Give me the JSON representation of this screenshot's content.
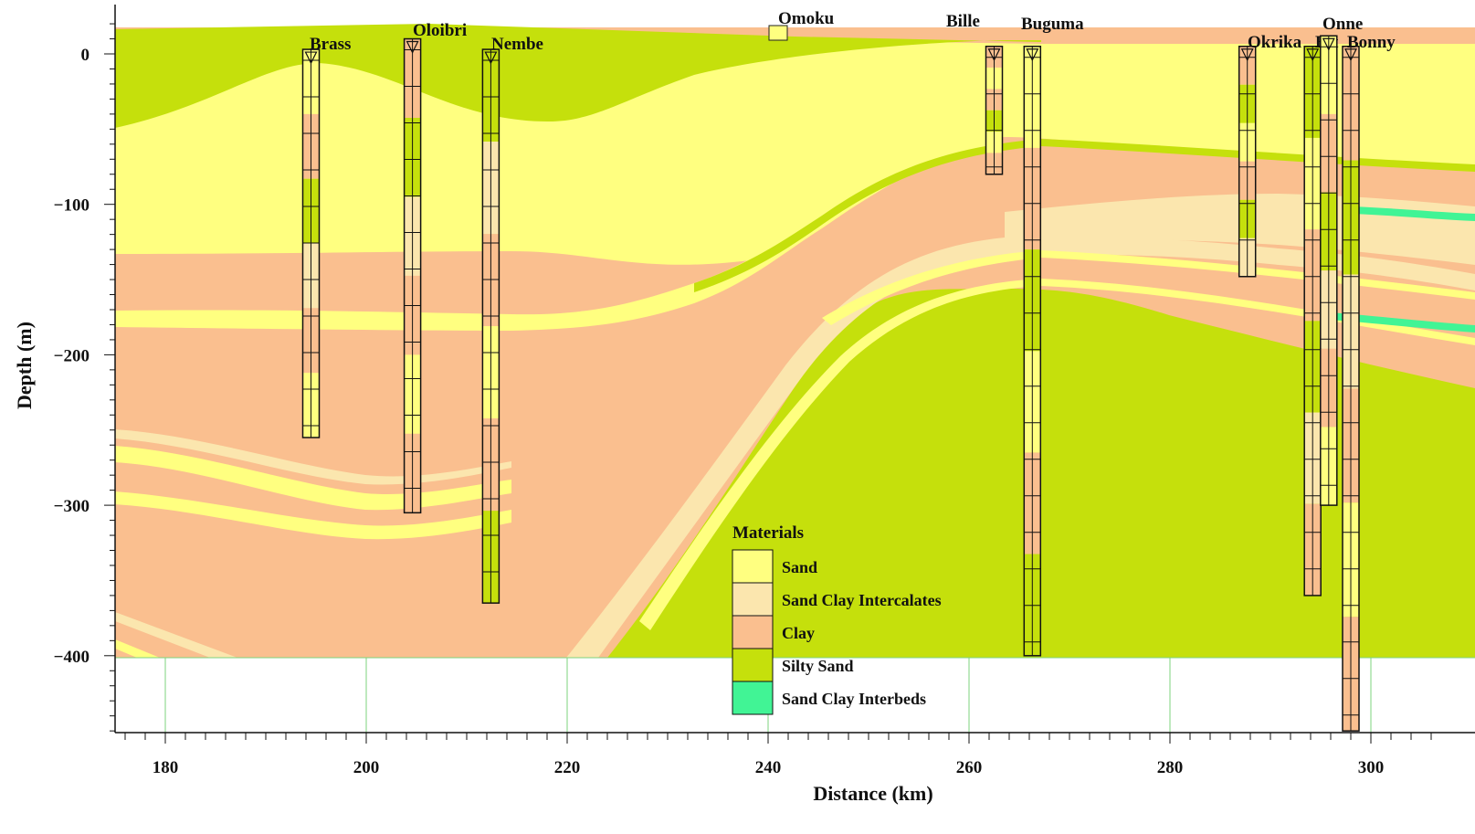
{
  "axes": {
    "x_title": "Distance (km)",
    "y_title": "Depth (m)",
    "x_ticks": [
      "180",
      "200",
      "220",
      "240",
      "260",
      "280",
      "300"
    ],
    "y_ticks": [
      "0",
      "−100",
      "−200",
      "−300",
      "−400"
    ]
  },
  "wells": [
    {
      "name": "Brass",
      "km": 194.5,
      "top": 3,
      "bottom": -255
    },
    {
      "name": "Oloibri",
      "km": 204.6,
      "top": 10,
      "bottom": -305
    },
    {
      "name": "Nembe",
      "km": 212.4,
      "top": 3,
      "bottom": -365
    },
    {
      "name": "Omoku",
      "km": 241.1,
      "top": 20,
      "bottom": 12
    },
    {
      "name": "Bille",
      "km": 262.5,
      "top": 5,
      "bottom": -80
    },
    {
      "name": "Buguma",
      "km": 266.3,
      "top": 5,
      "bottom": -400
    },
    {
      "name": "Okrika",
      "km": 287.7,
      "top": 5,
      "bottom": -148
    },
    {
      "name": "Bft",
      "km": 294.2,
      "top": 5,
      "bottom": -360
    },
    {
      "name": "Onne",
      "km": 295.8,
      "top": 12,
      "bottom": -300
    },
    {
      "name": "Bonny",
      "km": 298.0,
      "top": 5,
      "bottom": -450
    }
  ],
  "legend": {
    "title": "Materials",
    "items": [
      {
        "label": "Sand",
        "color": "#ffff80"
      },
      {
        "label": "Sand Clay Intercalates",
        "color": "#fbe6ae"
      },
      {
        "label": "Clay",
        "color": "#fabf8f"
      },
      {
        "label": "Silty Sand",
        "color": "#c5e00c"
      },
      {
        "label": "Sand Clay Interbeds",
        "color": "#41f495"
      }
    ]
  },
  "colors": {
    "sand": "#ffff80",
    "sand_clay_intercalates": "#fbe6ae",
    "clay": "#fabf8f",
    "silty_sand": "#c5e00c",
    "sand_clay_interbeds": "#41f495",
    "grid": "#7ed37e"
  }
}
